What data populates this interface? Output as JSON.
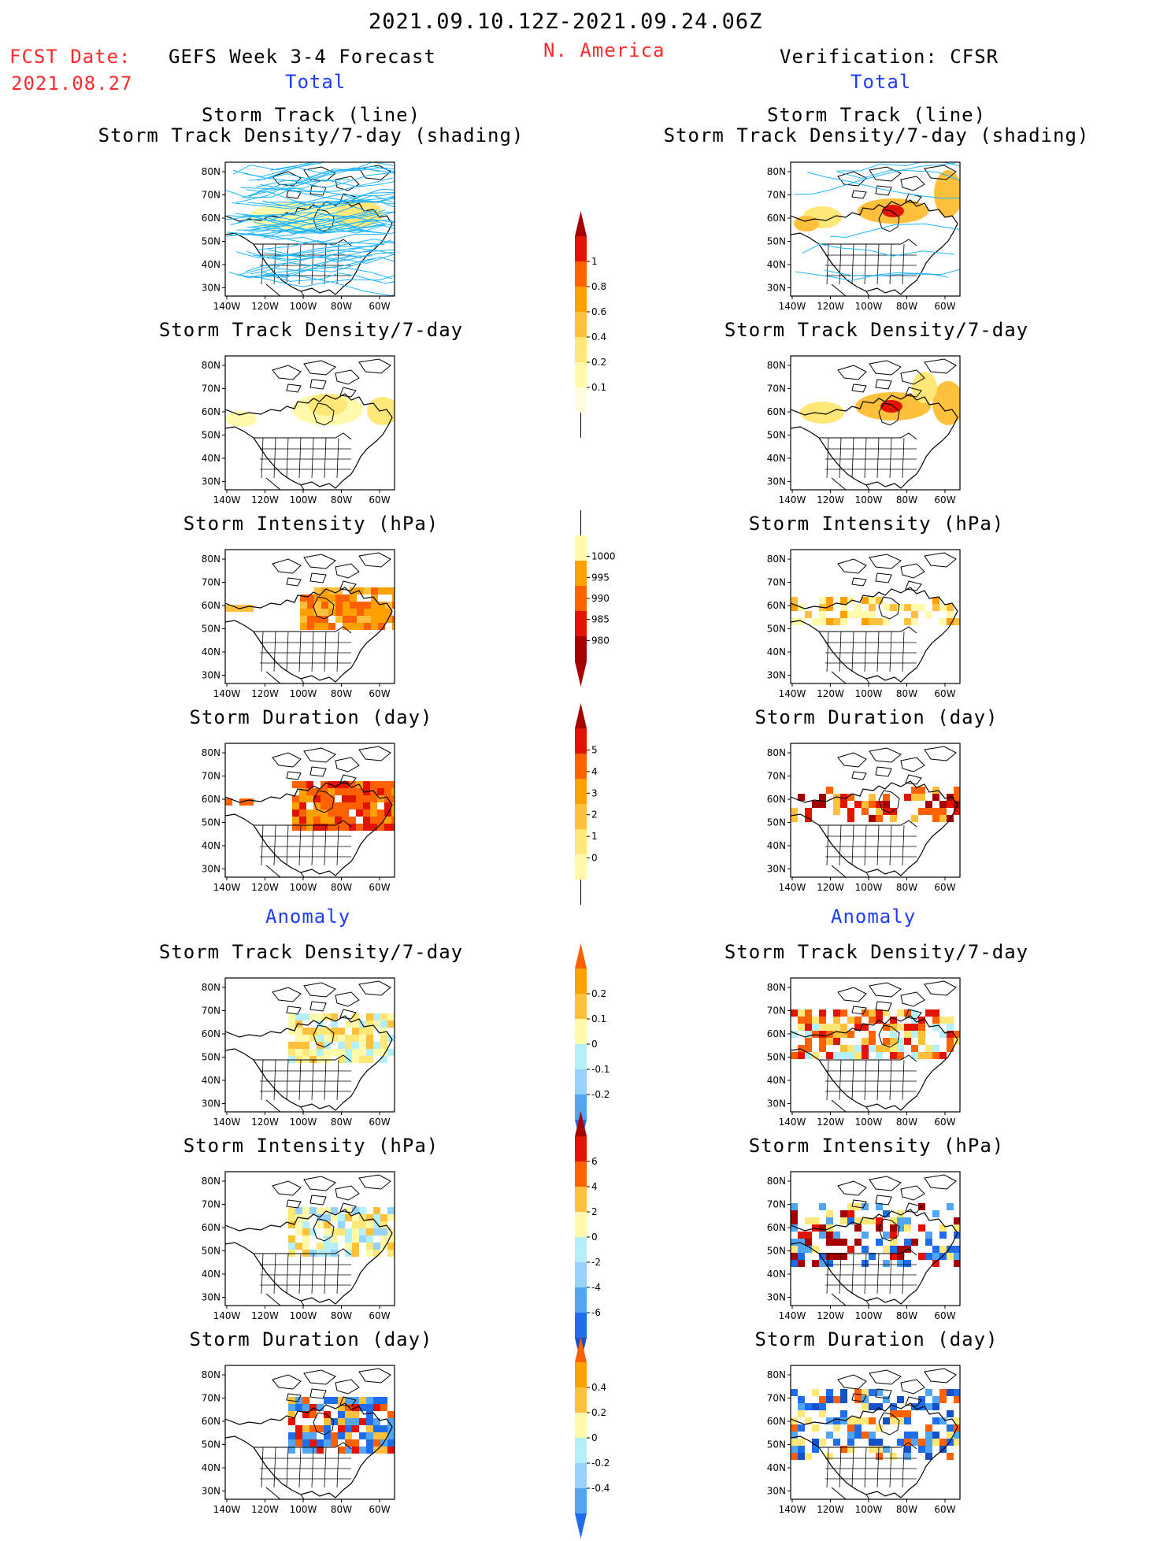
{
  "header": {
    "period": "2021.09.10.12Z-2021.09.24.06Z",
    "fcst_label": "FCST Date:",
    "fcst_date": "2021.08.27",
    "left_title": "GEFS Week 3-4 Forecast",
    "region": "N. America",
    "right_title": "Verification: CFSR",
    "total": "Total",
    "anomaly": "Anomaly"
  },
  "panel_titles": {
    "storm_track_line": "Storm Track (line)",
    "storm_track_density_shading": "Storm Track Density/7-day (shading)",
    "storm_track_density": "Storm Track Density/7-day",
    "storm_intensity": "Storm Intensity (hPa)",
    "storm_duration": "Storm Duration (day)"
  },
  "axes": {
    "lat_labels": [
      "80N",
      "70N",
      "60N",
      "50N",
      "40N",
      "30N"
    ],
    "lon_labels": [
      "140W",
      "120W",
      "100W",
      "80W",
      "60W"
    ]
  },
  "colorbars": {
    "density": [
      "1",
      "0.8",
      "0.6",
      "0.4",
      "0.2",
      "0.1"
    ],
    "intensity": [
      "1000",
      "995",
      "990",
      "985",
      "980"
    ],
    "duration": [
      "5",
      "4",
      "3",
      "2",
      "1",
      "0"
    ],
    "density_anom": [
      "0.2",
      "0.1",
      "0",
      "-0.1",
      "-0.2"
    ],
    "intensity_anom": [
      "6",
      "4",
      "2",
      "0",
      "-2",
      "-4",
      "-6"
    ],
    "duration_anom": [
      "0.4",
      "0.2",
      "0",
      "-0.2",
      "-0.4"
    ]
  },
  "colors": {
    "warm": [
      "#fffaaa",
      "#ffe878",
      "#ffc03c",
      "#ffa000",
      "#ff6000",
      "#e11400",
      "#a50000"
    ],
    "cool": [
      "#b4f0fa",
      "#96d2fa",
      "#50a5f5",
      "#1e6eeb",
      "#1450c8"
    ],
    "track": "#1eb4ff"
  }
}
